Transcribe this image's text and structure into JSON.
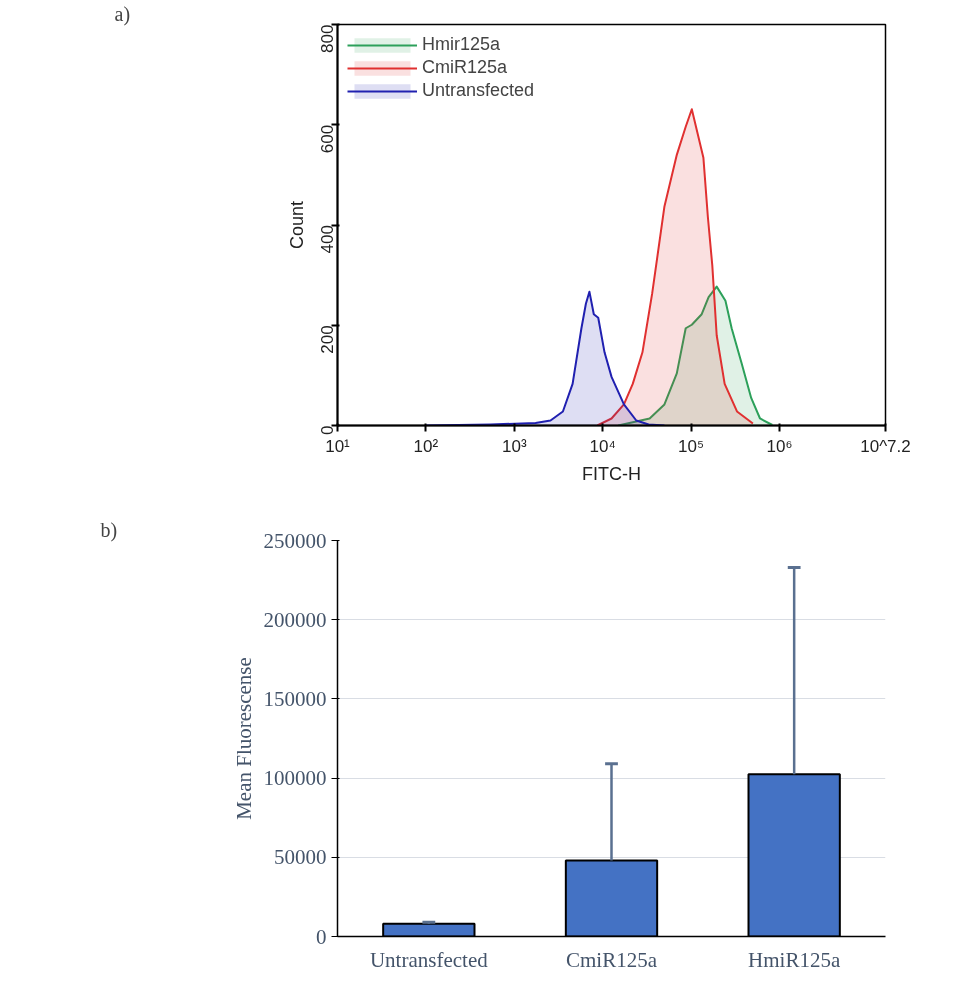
{
  "chart_data": [
    {
      "type": "area",
      "xlabel": "FITC-H",
      "ylabel": "Count",
      "annotations": [
        "a)"
      ],
      "log": "x",
      "legend": "top left",
      "grid": false,
      "xlim": [
        10,
        15848932
      ],
      "ylim": [
        0,
        800
      ],
      "xticks": [
        {
          "value": 10,
          "label": "10¹"
        },
        {
          "value": 100,
          "label": "10²"
        },
        {
          "value": 1000,
          "label": "10³"
        },
        {
          "value": 10000,
          "label": "10⁴"
        },
        {
          "value": 100000,
          "label": "10⁵"
        },
        {
          "value": 1000000,
          "label": "10⁶"
        },
        {
          "value": 15848932,
          "label": "10^7.2"
        }
      ],
      "yticks": [
        0,
        200,
        400,
        600,
        800
      ],
      "series": [
        {
          "name": "Hmir125a",
          "color": "#2ca05a",
          "x": [
            15000,
            34000,
            50000,
            69000,
            87000,
            102000,
            132000,
            158000,
            195000,
            245000,
            288000,
            372000,
            479000,
            603000,
            832000
          ],
          "values": [
            0,
            14,
            42,
            104,
            194,
            201,
            222,
            256,
            277,
            249,
            194,
            125,
            55,
            14,
            1
          ]
        },
        {
          "name": "CmiR125a",
          "color": "#e03030",
          "x": [
            8700,
            12600,
            17400,
            21900,
            28200,
            36300,
            50000,
            69000,
            87000,
            102000,
            138000,
            155000,
            174000,
            195000,
            240000,
            331000,
            501000
          ],
          "values": [
            0,
            14,
            42,
            83,
            146,
            263,
            437,
            540,
            596,
            631,
            534,
            416,
            319,
            180,
            83,
            28,
            4
          ]
        },
        {
          "name": "Untransfected",
          "color": "#2020b0",
          "x": [
            100,
            537,
            1740,
            2570,
            3550,
            4570,
            5750,
            6460,
            7080,
            7940,
            8910,
            10500,
            12600,
            17400,
            24000,
            33100,
            50000
          ],
          "values": [
            0,
            2,
            5,
            10,
            28,
            83,
            194,
            243,
            267,
            222,
            215,
            146,
            97,
            42,
            10,
            2,
            0
          ]
        }
      ]
    },
    {
      "type": "bar",
      "ylabel": "Mean Fluorescense",
      "annotations": [
        "b)"
      ],
      "grid": "y",
      "categories": [
        "Untransfected",
        "CmiR125a",
        "HmiR125a"
      ],
      "values": [
        8000,
        48000,
        102500
      ],
      "color": "#4472c4",
      "errors": [
        [
          8000,
          9000
        ],
        [
          48000,
          109000
        ],
        [
          102500,
          233000
        ]
      ],
      "ylim": [
        0,
        250000
      ],
      "yticks": [
        0,
        50000,
        100000,
        150000,
        200000,
        250000
      ]
    }
  ]
}
